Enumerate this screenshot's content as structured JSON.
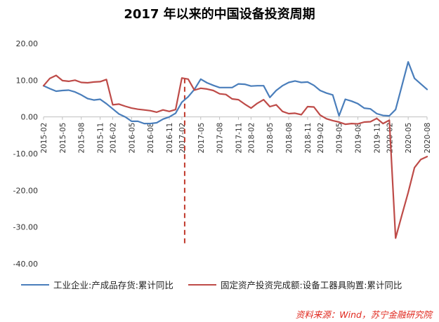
{
  "chart_data": {
    "type": "line",
    "title": "2017 年以来的中国设备投资周期",
    "xlabel": "",
    "ylabel": "",
    "ylim": [
      -40,
      20
    ],
    "yticks": [
      "20.00",
      "10.00",
      "0.00",
      "-10.00",
      "-20.00",
      "-30.00",
      "-40.00"
    ],
    "grid": false,
    "legend_position": "bottom",
    "x": [
      "2015-02",
      "2015-03",
      "2015-04",
      "2015-05",
      "2015-06",
      "2015-07",
      "2015-08",
      "2015-09",
      "2015-10",
      "2015-11",
      "2015-12",
      "2016-02",
      "2016-03",
      "2016-04",
      "2016-05",
      "2016-06",
      "2016-07",
      "2016-08",
      "2016-09",
      "2016-10",
      "2016-11",
      "2016-12",
      "2017-02",
      "2017-03",
      "2017-04",
      "2017-05",
      "2017-06",
      "2017-07",
      "2017-08",
      "2017-09",
      "2017-10",
      "2017-11",
      "2017-12",
      "2018-02",
      "2018-03",
      "2018-04",
      "2018-05",
      "2018-06",
      "2018-07",
      "2018-08",
      "2018-09",
      "2018-10",
      "2018-11",
      "2018-12",
      "2019-02",
      "2019-03",
      "2019-04",
      "2019-05",
      "2019-06",
      "2019-07",
      "2019-08",
      "2019-09",
      "2019-10",
      "2019-11",
      "2019-12",
      "2020-02",
      "2020-03",
      "2020-04",
      "2020-05",
      "2020-06",
      "2020-07",
      "2020-08"
    ],
    "xticks": [
      "2015-02",
      "2015-05",
      "2015-08",
      "2015-11",
      "2016-02",
      "2016-05",
      "2016-08",
      "2016-11",
      "2017-02",
      "2017-05",
      "2017-08",
      "2017-11",
      "2018-02",
      "2018-05",
      "2018-08",
      "2018-11",
      "2019-02",
      "2019-05",
      "2019-08",
      "2019-11",
      "2020-02",
      "2020-05",
      "2020-08"
    ],
    "series": [
      {
        "name": "工业企业:产成品存货:累计同比",
        "color": "#4a7ebb",
        "values": [
          8.5,
          7.7,
          7.0,
          7.2,
          7.3,
          6.8,
          6.0,
          5.0,
          4.6,
          4.8,
          3.6,
          2.2,
          0.8,
          0.0,
          -1.2,
          -1.2,
          -1.8,
          -1.8,
          -1.6,
          -0.6,
          0.0,
          1.0,
          4.0,
          5.5,
          7.5,
          10.3,
          9.3,
          8.6,
          8.0,
          8.0,
          8.0,
          9.0,
          8.9,
          8.4,
          8.5,
          8.5,
          5.3,
          7.2,
          8.5,
          9.4,
          9.8,
          9.4,
          9.5,
          8.6,
          7.2,
          6.5,
          6.0,
          0.3,
          4.8,
          4.3,
          3.6,
          2.4,
          2.2,
          0.9,
          0.4,
          0.3,
          2.0,
          8.5,
          15.0,
          10.5,
          9.0,
          7.5
        ]
      },
      {
        "name": "固定资产投资完成额:设备工器具购置:累计同比",
        "color": "#be4b48",
        "values": [
          8.5,
          10.5,
          11.3,
          9.9,
          9.7,
          10.0,
          9.4,
          9.3,
          9.5,
          9.6,
          10.2,
          3.3,
          3.5,
          2.9,
          2.4,
          2.1,
          1.9,
          1.7,
          1.3,
          1.9,
          1.5,
          2.0,
          10.6,
          10.3,
          7.3,
          7.8,
          7.6,
          7.2,
          6.3,
          6.1,
          4.9,
          4.7,
          3.5,
          2.4,
          3.7,
          4.7,
          2.8,
          3.3,
          1.5,
          0.9,
          1.0,
          0.6,
          2.8,
          2.7,
          0.5,
          -0.5,
          -1.0,
          -1.4,
          -2.0,
          -1.8,
          -1.9,
          -1.4,
          -1.3,
          -0.4,
          -1.8,
          -0.9,
          -33.0,
          -26.7,
          -20.6,
          -13.8,
          -11.6,
          -10.8
        ]
      }
    ],
    "annotations": [
      {
        "type": "vertical-dashed-line",
        "x": "2017-02",
        "color": "#c0392b"
      }
    ],
    "source": "资料来源：Wind，苏宁金融研究院"
  }
}
